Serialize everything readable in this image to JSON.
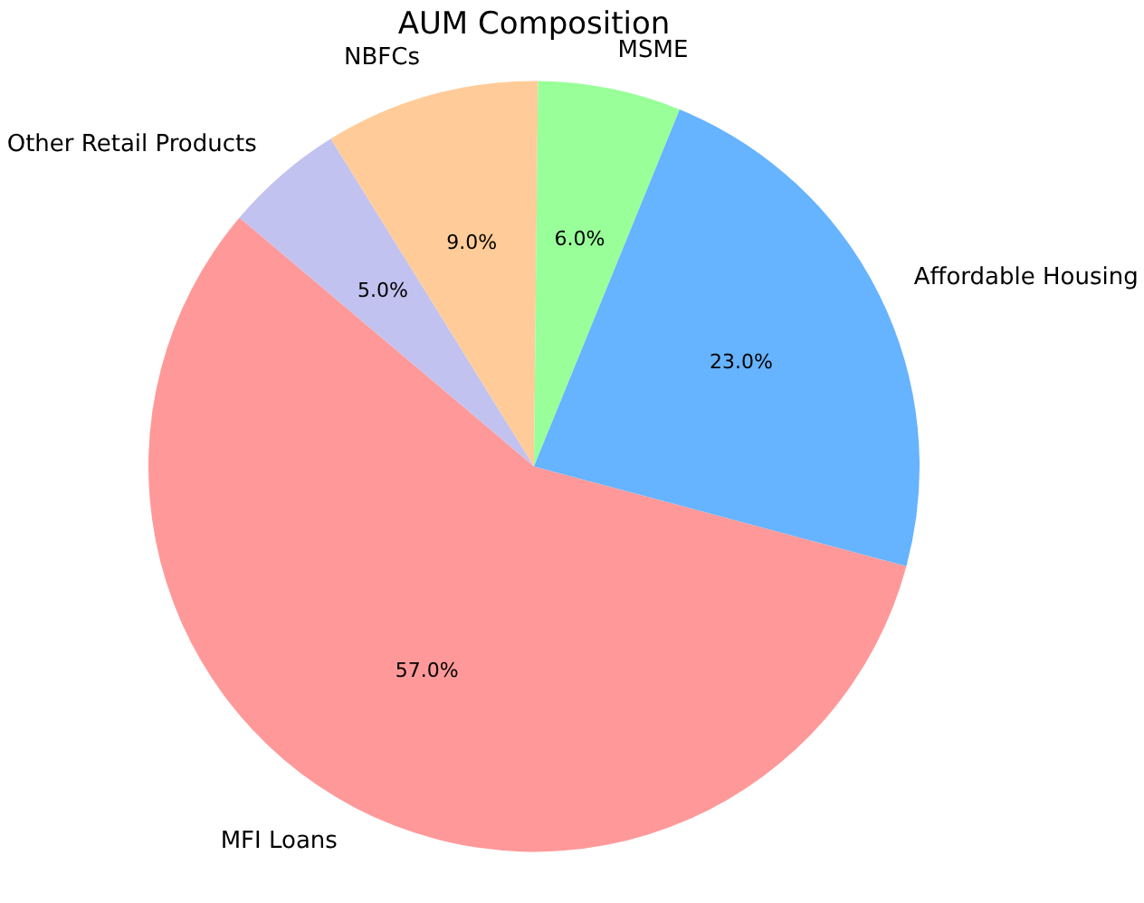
{
  "chart_data": {
    "type": "pie",
    "title": "AUM Composition",
    "categories": [
      "MFI Loans",
      "Other Retail Products",
      "NBFCs",
      "MSME",
      "Affordable Housing"
    ],
    "values": [
      57.0,
      5.0,
      9.0,
      6.0,
      23.0
    ],
    "colors": [
      "#ff9999",
      "#c2c2f0",
      "#ffcc99",
      "#99ff99",
      "#66b3ff"
    ],
    "value_labels": [
      "57.0%",
      "5.0%",
      "9.0%",
      "6.0%",
      "23.0%"
    ],
    "legend": false
  }
}
